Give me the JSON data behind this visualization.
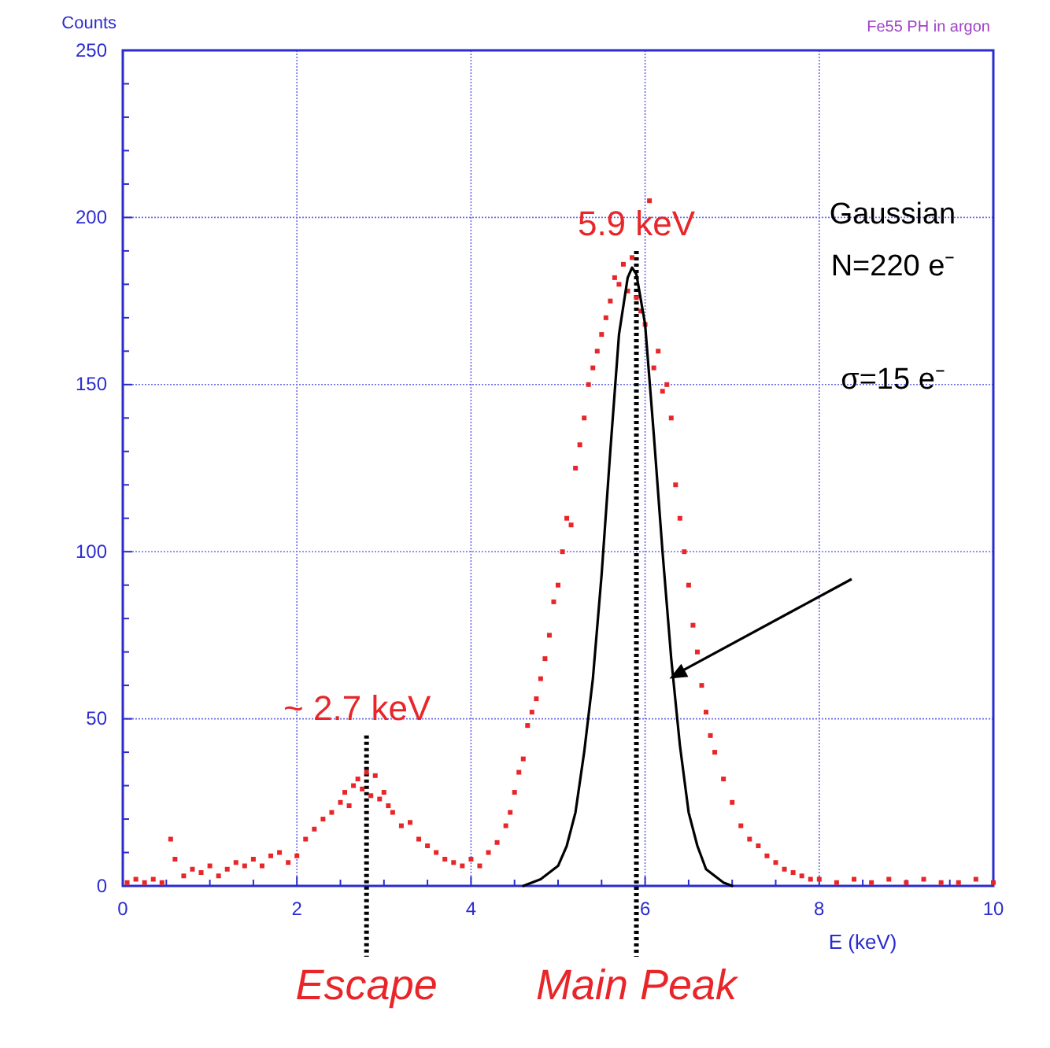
{
  "chart_data": {
    "type": "scatter",
    "title": "Fe55 PH in argon",
    "xlabel": "E (keV)",
    "ylabel": "Counts",
    "xlim": [
      0,
      10
    ],
    "ylim": [
      0,
      250
    ],
    "xticks": [
      0,
      {
        "value": 0.5,
        "label": null
      },
      {
        "value": 1,
        "label": null
      },
      {
        "value": 1.5,
        "label": null
      },
      2,
      {
        "value": 2.5,
        "label": null
      },
      {
        "value": 3,
        "label": null
      },
      {
        "value": 3.5,
        "label": null
      },
      4,
      {
        "value": 4.5,
        "label": null
      },
      {
        "value": 5,
        "label": null
      },
      {
        "value": 5.5,
        "label": null
      },
      6,
      {
        "value": 6.5,
        "label": null
      },
      {
        "value": 7,
        "label": null
      },
      {
        "value": 7.5,
        "label": null
      },
      8,
      {
        "value": 8.5,
        "label": null
      },
      {
        "value": 9,
        "label": null
      },
      {
        "value": 9.5,
        "label": null
      },
      10
    ],
    "yticks": [
      0,
      {
        "value": 10,
        "label": null
      },
      {
        "value": 20,
        "label": null
      },
      {
        "value": 30,
        "label": null
      },
      {
        "value": 40,
        "label": null
      },
      50,
      {
        "value": 60,
        "label": null
      },
      {
        "value": 70,
        "label": null
      },
      {
        "value": 80,
        "label": null
      },
      {
        "value": 90,
        "label": null
      },
      100,
      {
        "value": 110,
        "label": null
      },
      {
        "value": 120,
        "label": null
      },
      {
        "value": 130,
        "label": null
      },
      {
        "value": 140,
        "label": null
      },
      150,
      {
        "value": 160,
        "label": null
      },
      {
        "value": 170,
        "label": null
      },
      {
        "value": 180,
        "label": null
      },
      {
        "value": 190,
        "label": null
      },
      200,
      {
        "value": 210,
        "label": null
      },
      {
        "value": 220,
        "label": null
      },
      {
        "value": 230,
        "label": null
      },
      {
        "value": 240,
        "label": null
      },
      250
    ],
    "grid": true,
    "marker": "square",
    "series": [
      {
        "color": "#e8262a",
        "x": [
          0.05,
          0.15,
          0.25,
          0.35,
          0.45,
          0.55,
          0.6,
          0.7,
          0.8,
          0.9,
          1.0,
          1.1,
          1.2,
          1.3,
          1.4,
          1.5,
          1.6,
          1.7,
          1.8,
          1.9,
          2.0,
          2.1,
          2.2,
          2.3,
          2.4,
          2.5,
          2.55,
          2.6,
          2.65,
          2.7,
          2.75,
          2.8,
          2.85,
          2.9,
          2.95,
          3.0,
          3.05,
          3.1,
          3.2,
          3.3,
          3.4,
          3.5,
          3.6,
          3.7,
          3.8,
          3.9,
          4.0,
          4.1,
          4.2,
          4.3,
          4.4,
          4.45,
          4.5,
          4.55,
          4.6,
          4.65,
          4.7,
          4.75,
          4.8,
          4.85,
          4.9,
          4.95,
          5.0,
          5.05,
          5.1,
          5.15,
          5.2,
          5.25,
          5.3,
          5.35,
          5.4,
          5.45,
          5.5,
          5.55,
          5.6,
          5.65,
          5.7,
          5.75,
          5.8,
          5.85,
          5.9,
          5.95,
          6.0,
          6.05,
          6.1,
          6.15,
          6.2,
          6.25,
          6.3,
          6.35,
          6.4,
          6.45,
          6.5,
          6.55,
          6.6,
          6.65,
          6.7,
          6.75,
          6.8,
          6.9,
          7.0,
          7.1,
          7.2,
          7.3,
          7.4,
          7.5,
          7.6,
          7.7,
          7.8,
          7.9,
          8.0,
          8.2,
          8.4,
          8.6,
          8.8,
          9.0,
          9.2,
          9.4,
          9.6,
          9.8,
          10.0
        ],
        "values": [
          1,
          2,
          1,
          2,
          1,
          14,
          8,
          3,
          5,
          4,
          6,
          3,
          5,
          7,
          6,
          8,
          6,
          9,
          10,
          7,
          9,
          14,
          17,
          20,
          22,
          25,
          28,
          24,
          30,
          32,
          29,
          34,
          27,
          33,
          26,
          28,
          24,
          22,
          18,
          19,
          14,
          12,
          10,
          8,
          7,
          6,
          8,
          6,
          10,
          13,
          18,
          22,
          28,
          34,
          38,
          48,
          52,
          56,
          62,
          68,
          75,
          85,
          90,
          100,
          110,
          108,
          125,
          132,
          140,
          150,
          155,
          160,
          165,
          170,
          175,
          182,
          180,
          186,
          178,
          188,
          176,
          172,
          168,
          205,
          155,
          160,
          148,
          150,
          140,
          120,
          110,
          100,
          90,
          78,
          70,
          60,
          52,
          45,
          40,
          32,
          25,
          18,
          14,
          12,
          9,
          7,
          5,
          4,
          3,
          2,
          2,
          1,
          2,
          1,
          2,
          1,
          2,
          1,
          1,
          2,
          1
        ]
      },
      {
        "type": "line",
        "color": "#000000",
        "marker": "none",
        "x": [
          4.6,
          4.8,
          5.0,
          5.1,
          5.2,
          5.3,
          5.4,
          5.5,
          5.6,
          5.7,
          5.8,
          5.85,
          5.9,
          6.0,
          6.1,
          6.2,
          6.3,
          6.4,
          6.5,
          6.6,
          6.7,
          6.8,
          6.9,
          7.0
        ],
        "values": [
          0,
          2,
          6,
          12,
          22,
          40,
          62,
          93,
          130,
          165,
          182,
          185,
          183,
          168,
          135,
          100,
          68,
          42,
          22,
          12,
          5,
          3,
          1,
          0
        ]
      }
    ],
    "annotations": [
      {
        "text": "~ 2.7 keV",
        "x": 2.8,
        "y": 45
      },
      {
        "text": "5.9 keV",
        "x": 5.9,
        "y": 190
      },
      "Gaussian",
      "N=220 e⁻",
      "σ=15  e⁻"
    ],
    "ref_lines": [
      {
        "axis": "x",
        "value": 2.8,
        "label": "Escape",
        "color": "#000000",
        "line_style": "dotted"
      },
      {
        "axis": "x",
        "value": 5.9,
        "label": "Main Peak",
        "color": "#000000",
        "line_style": "dotted"
      }
    ]
  }
}
